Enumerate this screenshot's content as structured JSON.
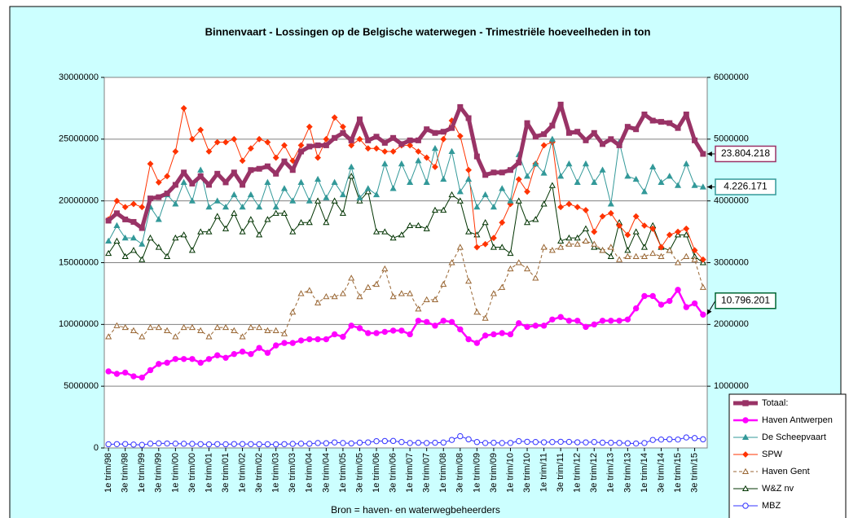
{
  "chart_data": {
    "type": "line",
    "title": "Binnenvaart - Lossingen op de Belgische waterwegen - Trimestriële hoeveelheden in ton",
    "footer": "Bron = haven- en waterwegbeheerders",
    "categories": [
      "1e trim/98",
      null,
      "3e trim/98",
      null,
      "1e trim/99",
      null,
      "3e trim/99",
      null,
      "1e trim/00",
      null,
      "3e trim/00",
      null,
      "1e trim/01",
      null,
      "3e trim/01",
      null,
      "1e trim/02",
      null,
      "3e trim/02",
      null,
      "1e trim/03",
      null,
      "3e trim/03",
      null,
      "1e trim/04",
      null,
      "3e trim/04",
      null,
      "1e trim/05",
      null,
      "3e trim/05",
      null,
      "1e trim/06",
      null,
      "3e trim/06",
      null,
      "1e trim/07",
      null,
      "3e trim/07",
      null,
      "1e trim/08",
      null,
      "3e trim/08",
      null,
      "1e trim/09",
      null,
      "3e trim/09",
      null,
      "1e trim/10",
      null,
      "3e trim/10",
      null,
      "1e trim/11",
      null,
      "3e trim/11",
      null,
      "1e trim/12",
      null,
      "3e trim/12",
      null,
      "1e trim/13",
      null,
      "3e trim/13",
      null,
      "1e trim/14",
      null,
      "3e trim/14",
      null,
      "1e trim/15",
      null,
      "3e trim/15",
      null
    ],
    "ylim": [
      0,
      30000000
    ],
    "yticks": [
      0,
      5000000,
      10000000,
      15000000,
      20000000,
      25000000,
      30000000
    ],
    "y2lim": [
      0,
      6000000
    ],
    "y2ticks": [
      1000000,
      2000000,
      3000000,
      4000000,
      5000000,
      6000000
    ],
    "grid": true,
    "legend": "lower right",
    "series": [
      {
        "name": "Totaal:",
        "color": "#993366",
        "marker": "square",
        "width": 5,
        "axis": "y",
        "values": [
          18400000,
          19000000,
          18500000,
          18300000,
          17800000,
          20200000,
          20300000,
          20600000,
          21300000,
          22300000,
          21400000,
          22000000,
          21300000,
          22200000,
          21500000,
          22300000,
          21300000,
          22500000,
          22600000,
          22800000,
          22200000,
          23200000,
          22500000,
          24000000,
          24400000,
          24500000,
          24500000,
          25100000,
          25500000,
          24900000,
          26600000,
          24900000,
          25200000,
          24700000,
          25100000,
          24600000,
          24900000,
          24900000,
          25800000,
          25500000,
          25600000,
          25900000,
          27600000,
          26700000,
          23600000,
          22100000,
          22300000,
          22300000,
          22500000,
          23100000,
          26300000,
          25200000,
          25400000,
          26100000,
          27800000,
          25500000,
          25600000,
          24900000,
          25500000,
          24600000,
          25000000,
          24500000,
          26000000,
          25800000,
          27000000,
          26500000,
          26400000,
          26300000,
          25900000,
          27000000,
          24900000,
          23804218
        ],
        "value_labels": [
          null,
          null,
          null,
          null,
          null,
          null,
          null,
          null,
          null,
          null,
          null,
          null,
          null,
          null,
          null,
          null,
          null,
          null,
          null,
          null,
          null,
          null,
          null,
          null,
          null,
          null,
          null,
          null,
          null,
          null,
          null,
          null,
          null,
          null,
          null,
          null,
          null,
          null,
          null,
          null,
          null,
          null,
          null,
          null,
          null,
          null,
          null,
          null,
          null,
          null,
          null,
          null,
          null,
          null,
          null,
          null,
          null,
          null,
          null,
          null,
          null,
          null,
          null,
          null,
          null,
          null,
          null,
          null,
          null,
          null,
          null,
          "23.804.218"
        ]
      },
      {
        "name": "Haven Antwerpen",
        "color": "#ff00ff",
        "marker": "circle",
        "width": 2.5,
        "axis": "y",
        "values": [
          6200000,
          6000000,
          6100000,
          5800000,
          5700000,
          6300000,
          6800000,
          6900000,
          7200000,
          7200000,
          7200000,
          6900000,
          7200000,
          7500000,
          7300000,
          7600000,
          7800000,
          7600000,
          8100000,
          7700000,
          8300000,
          8500000,
          8500000,
          8700000,
          8800000,
          8800000,
          8800000,
          9200000,
          9000000,
          9900000,
          9700000,
          9300000,
          9300000,
          9400000,
          9500000,
          9500000,
          9200000,
          10300000,
          10200000,
          9900000,
          10300000,
          10200000,
          9600000,
          8800000,
          8500000,
          9100000,
          9200000,
          9300000,
          9200000,
          10100000,
          9800000,
          9900000,
          9900000,
          10400000,
          10600000,
          10300000,
          10300000,
          9800000,
          10000000,
          10300000,
          10300000,
          10300000,
          10400000,
          11300000,
          12300000,
          12300000,
          11600000,
          11900000,
          12800000,
          11400000,
          11700000,
          10796201
        ],
        "value_labels": [
          null,
          null,
          null,
          null,
          null,
          null,
          null,
          null,
          null,
          null,
          null,
          null,
          null,
          null,
          null,
          null,
          null,
          null,
          null,
          null,
          null,
          null,
          null,
          null,
          null,
          null,
          null,
          null,
          null,
          null,
          null,
          null,
          null,
          null,
          null,
          null,
          null,
          null,
          null,
          null,
          null,
          null,
          null,
          null,
          null,
          null,
          null,
          null,
          null,
          null,
          null,
          null,
          null,
          null,
          null,
          null,
          null,
          null,
          null,
          null,
          null,
          null,
          null,
          null,
          null,
          null,
          null,
          null,
          null,
          null,
          null,
          "10.796.201"
        ]
      },
      {
        "name": "De Scheepvaart",
        "color": "#339999",
        "marker": "triangle",
        "width": 1,
        "axis": "y2",
        "values": [
          3350000,
          3600000,
          3400000,
          3400000,
          3300000,
          3900000,
          3700000,
          4100000,
          3950000,
          4300000,
          4000000,
          4500000,
          3900000,
          4000000,
          3900000,
          4100000,
          3900000,
          4100000,
          3900000,
          4300000,
          3900000,
          4200000,
          4000000,
          4300000,
          4000000,
          4350000,
          4050000,
          4300000,
          4100000,
          4550000,
          4050000,
          4200000,
          4100000,
          4600000,
          4200000,
          4600000,
          4300000,
          4650000,
          4300000,
          4850000,
          4350000,
          4800000,
          4150000,
          4350000,
          3900000,
          4100000,
          3900000,
          4200000,
          4000000,
          4750000,
          4400000,
          4600000,
          4450000,
          5000000,
          4400000,
          4600000,
          4300000,
          4600000,
          4300000,
          4500000,
          3950000,
          4950000,
          4400000,
          4350000,
          4150000,
          4550000,
          4300000,
          4400000,
          4250000,
          4600000,
          4250000,
          4226171
        ],
        "value_labels": [
          null,
          null,
          null,
          null,
          null,
          null,
          null,
          null,
          null,
          null,
          null,
          null,
          null,
          null,
          null,
          null,
          null,
          null,
          null,
          null,
          null,
          null,
          null,
          null,
          null,
          null,
          null,
          null,
          null,
          null,
          null,
          null,
          null,
          null,
          null,
          null,
          null,
          null,
          null,
          null,
          null,
          null,
          null,
          null,
          null,
          null,
          null,
          null,
          null,
          null,
          null,
          null,
          null,
          null,
          null,
          null,
          null,
          null,
          null,
          null,
          null,
          null,
          null,
          null,
          null,
          null,
          null,
          null,
          null,
          null,
          null,
          "4.226.171"
        ]
      },
      {
        "name": "SPW",
        "color": "#ff3300",
        "marker": "diamond",
        "width": 1,
        "axis": "y2",
        "values": [
          3700000,
          4000000,
          3900000,
          3950000,
          3900000,
          4600000,
          4300000,
          4400000,
          4800000,
          5500000,
          5000000,
          5150000,
          4800000,
          4950000,
          4950000,
          5000000,
          4650000,
          4850000,
          5000000,
          4950000,
          4700000,
          4900000,
          4650000,
          4900000,
          5200000,
          4700000,
          5000000,
          5350000,
          5200000,
          4900000,
          5000000,
          4850000,
          4850000,
          4800000,
          4800000,
          4900000,
          4900000,
          4800000,
          4700000,
          4550000,
          5000000,
          5300000,
          5050000,
          4500000,
          3250000,
          3300000,
          3400000,
          3650000,
          3950000,
          4350000,
          4150000,
          4600000,
          4900000,
          4950000,
          3900000,
          3950000,
          3900000,
          3850000,
          3500000,
          3750000,
          3800000,
          3600000,
          3450000,
          3750000,
          3600000,
          3550000,
          3250000,
          3450000,
          3500000,
          3550000,
          3200000,
          3050000
        ]
      },
      {
        "name": "Haven Gent",
        "color": "#996633",
        "marker": "triangle-open",
        "width": 1,
        "dash": "4 3",
        "axis": "y2",
        "values": [
          1800000,
          1980000,
          1950000,
          1900000,
          1800000,
          1950000,
          1950000,
          1900000,
          1800000,
          1950000,
          1950000,
          1900000,
          1800000,
          1950000,
          1950000,
          1900000,
          1800000,
          1950000,
          1950000,
          1900000,
          1900000,
          1850000,
          2200000,
          2500000,
          2550000,
          2350000,
          2450000,
          2450000,
          2500000,
          2750000,
          2450000,
          2600000,
          2650000,
          2900000,
          2450000,
          2500000,
          2500000,
          2250000,
          2400000,
          2400000,
          2650000,
          3000000,
          3250000,
          2700000,
          2200000,
          2100000,
          2500000,
          2600000,
          2900000,
          3000000,
          2900000,
          2750000,
          3250000,
          3200000,
          3250000,
          3300000,
          3300000,
          3350000,
          3300000,
          3200000,
          3250000,
          3050000,
          3100000,
          3100000,
          3100000,
          3150000,
          3100000,
          3200000,
          3000000,
          3100000,
          3050000,
          2600000
        ]
      },
      {
        "name": "W&Z nv",
        "color": "#003300",
        "marker": "triangle-open",
        "width": 1,
        "axis": "y2",
        "values": [
          3150000,
          3350000,
          3100000,
          3200000,
          3050000,
          3400000,
          3250000,
          3100000,
          3400000,
          3450000,
          3200000,
          3500000,
          3500000,
          3750000,
          3550000,
          3800000,
          3500000,
          3700000,
          3450000,
          3700000,
          3800000,
          3800000,
          3500000,
          3650000,
          3650000,
          4000000,
          3650000,
          4000000,
          3800000,
          4400000,
          4000000,
          4150000,
          3500000,
          3500000,
          3400000,
          3450000,
          3600000,
          3600000,
          3550000,
          3850000,
          3850000,
          4100000,
          4000000,
          3500000,
          3450000,
          3650000,
          3250000,
          3250000,
          3150000,
          4000000,
          3650000,
          3700000,
          3950000,
          4250000,
          3350000,
          3400000,
          3400000,
          3550000,
          3250000,
          3200000,
          3100000,
          3650000,
          3200000,
          3500000,
          3250000,
          3600000,
          3250000,
          3200000,
          3450000,
          3450000,
          3100000,
          3000000
        ]
      },
      {
        "name": "MBZ",
        "color": "#3333ff",
        "marker": "circle-open",
        "width": 1,
        "axis": "y2",
        "values": [
          60000,
          62000,
          64000,
          55000,
          50000,
          70000,
          75000,
          72000,
          70000,
          68000,
          66000,
          62000,
          58000,
          62000,
          60000,
          64000,
          64000,
          62000,
          60000,
          60000,
          58000,
          62000,
          66000,
          70000,
          68000,
          80000,
          76000,
          90000,
          80000,
          74000,
          86000,
          90000,
          110000,
          112000,
          114000,
          96000,
          80000,
          84000,
          80000,
          84000,
          88000,
          130000,
          190000,
          140000,
          96000,
          80000,
          84000,
          80000,
          82000,
          110000,
          100000,
          96000,
          92000,
          96000,
          100000,
          98000,
          92000,
          90000,
          96000,
          86000,
          84000,
          82000,
          76000,
          72000,
          80000,
          130000,
          136000,
          140000,
          136000,
          170000,
          160000,
          140000
        ]
      }
    ]
  }
}
